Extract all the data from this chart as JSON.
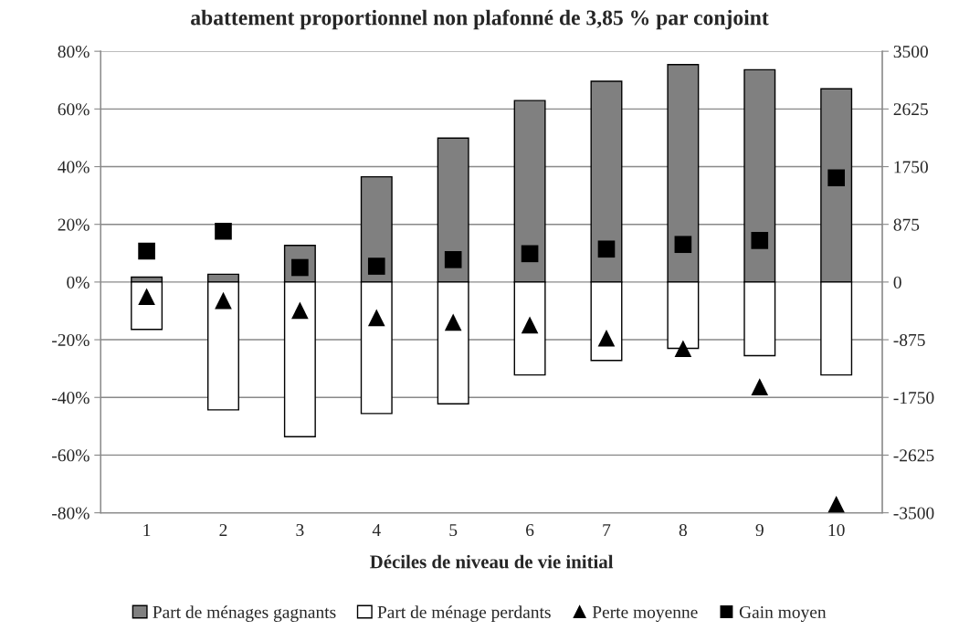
{
  "chart_data": {
    "type": "bar",
    "title": "abattement proportionnel non plafonné de 3,85 % par conjoint",
    "xlabel": "Déciles de niveau de vie initial",
    "categories": [
      "1",
      "2",
      "3",
      "4",
      "5",
      "6",
      "7",
      "8",
      "9",
      "10"
    ],
    "stacked": true,
    "series": [
      {
        "name": "Part de ménages gagnants",
        "color": "#808080",
        "values": [
          1.7,
          2.7,
          12.7,
          36.5,
          49.9,
          62.9,
          69.6,
          75.4,
          73.6,
          67
        ]
      },
      {
        "name": "Part de ménage perdants",
        "color": "#ffffff",
        "values": [
          -16.4,
          -44.3,
          -53.6,
          -45.6,
          -42.2,
          -32.2,
          -27.2,
          -23,
          -25.5,
          -32.2
        ]
      },
      {
        "name": "Perte moyenne",
        "type": "scatter",
        "axis": "y2",
        "marker": "triangle",
        "color": "#000000",
        "values": [
          -220,
          -280,
          -430,
          -540,
          -610,
          -650,
          -850,
          -1010,
          -1590,
          -3370
        ]
      },
      {
        "name": "Gain moyen",
        "type": "scatter",
        "axis": "y2",
        "marker": "square",
        "color": "#000000",
        "values": [
          470,
          770,
          220,
          240,
          340,
          430,
          500,
          570,
          630,
          1580
        ]
      }
    ],
    "ylim": [
      -80,
      80
    ],
    "yticks": [
      {
        "value": -80,
        "label": "-80%"
      },
      {
        "value": -60,
        "label": "-60%"
      },
      {
        "value": -40,
        "label": "-40%"
      },
      {
        "value": -20,
        "label": "-20%"
      },
      {
        "value": 0,
        "label": "0%"
      },
      {
        "value": 20,
        "label": "20%"
      },
      {
        "value": 40,
        "label": "40%"
      },
      {
        "value": 60,
        "label": "60%"
      },
      {
        "value": 80,
        "label": "80%"
      }
    ],
    "y2lim": [
      -3500,
      3500
    ],
    "y2ticks": [
      -3500,
      -2625,
      -1750,
      -875,
      0,
      875,
      1750,
      2625,
      3500
    ],
    "grid": "y",
    "legend": "bottom"
  }
}
